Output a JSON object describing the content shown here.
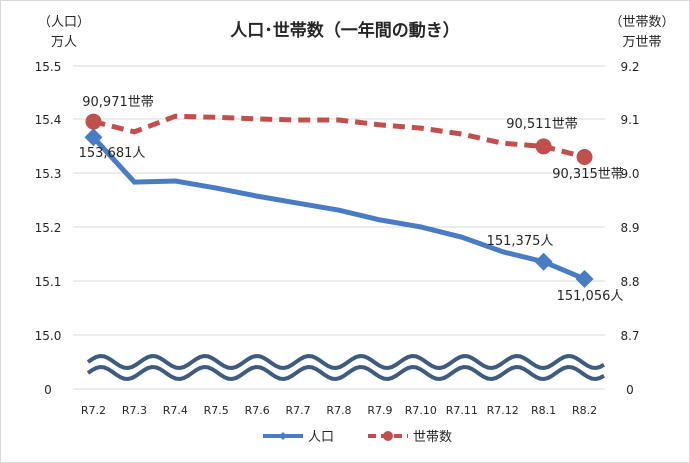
{
  "chart_data": {
    "type": "line",
    "title": "人口･世帯数（一年間の動き）",
    "left_axis_label": [
      "（人口）",
      "万人"
    ],
    "right_axis_label": [
      "（世帯数）",
      "万世帯"
    ],
    "categories": [
      "R7.2",
      "R7.3",
      "R7.4",
      "R7.5",
      "R7.6",
      "R7.7",
      "R7.8",
      "R7.9",
      "R7.10",
      "R7.11",
      "R7.12",
      "R8.1",
      "R8.2"
    ],
    "left_ticks": [
      "15.5",
      "15.4",
      "15.3",
      "15.2",
      "15.1",
      "15.0",
      "0"
    ],
    "right_ticks": [
      "9.2",
      "9.1",
      "9.0",
      "8.9",
      "8.8",
      "8.7",
      "0"
    ],
    "left_ylim": [
      15.0,
      15.5
    ],
    "right_ylim": [
      8.7,
      9.2
    ],
    "axis_break": true,
    "grid": true,
    "legend_position": "bottom",
    "series": [
      {
        "name": "人口",
        "axis": "left",
        "color": "#4a7cc4",
        "style": "solid",
        "marker": "diamond",
        "values": [
          15.368,
          15.285,
          15.287,
          15.274,
          15.259,
          15.246,
          15.233,
          15.215,
          15.202,
          15.183,
          15.156,
          15.1375,
          15.1056
        ],
        "labels": [
          {
            "index": 0,
            "text": "153,681人"
          },
          {
            "index": 11,
            "text": "151,375人"
          },
          {
            "index": 12,
            "text": "151,056人"
          }
        ]
      },
      {
        "name": "世帯数",
        "axis": "right",
        "color": "#c0504d",
        "style": "dashed",
        "marker": "circle",
        "values": [
          9.0971,
          9.078,
          9.107,
          9.105,
          9.102,
          9.1,
          9.1,
          9.091,
          9.085,
          9.074,
          9.057,
          9.0511,
          9.0315
        ],
        "labels": [
          {
            "index": 0,
            "text": "90,971世帯"
          },
          {
            "index": 11,
            "text": "90,511世帯"
          },
          {
            "index": 12,
            "text": "90,315世帯"
          }
        ]
      }
    ]
  }
}
